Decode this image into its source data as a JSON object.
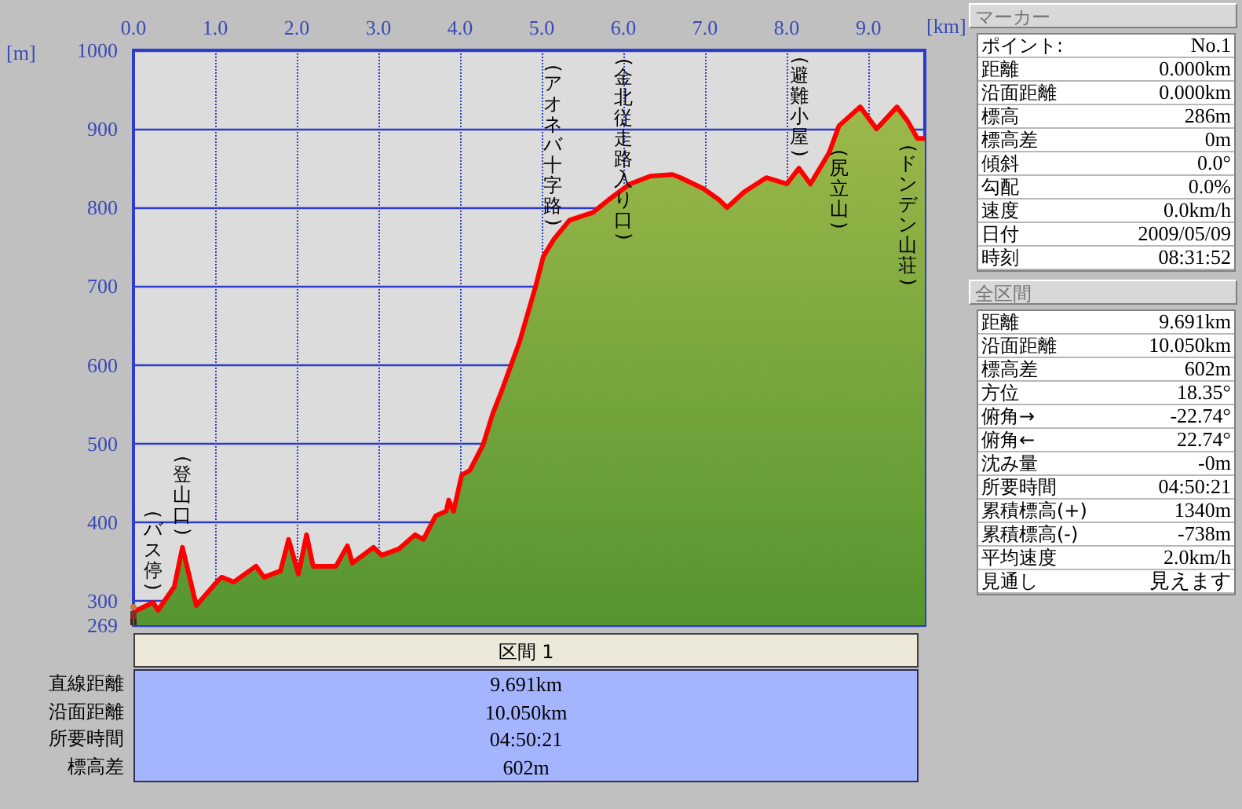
{
  "chart_data": {
    "type": "area",
    "xlabel": "[km]",
    "ylabel": "[m]",
    "marker": "none",
    "grid": true,
    "x": [
      0,
      0.24,
      0.3,
      0.5,
      0.6,
      0.77,
      1.02,
      1.08,
      1.23,
      1.5,
      1.6,
      1.8,
      1.9,
      2.02,
      2.12,
      2.2,
      2.48,
      2.62,
      2.68,
      2.94,
      3.04,
      3.25,
      3.45,
      3.55,
      3.7,
      3.83,
      3.86,
      3.92,
      4.02,
      4.12,
      4.28,
      4.4,
      4.52,
      4.73,
      4.92,
      5.02,
      5.15,
      5.34,
      5.63,
      5.82,
      6.08,
      6.33,
      6.6,
      6.7,
      6.98,
      7.17,
      7.27,
      7.48,
      7.75,
      8.0,
      8.15,
      8.29,
      8.52,
      8.64,
      8.9,
      9.1,
      9.35,
      9.48,
      9.6,
      9.691
    ],
    "series": [
      {
        "color": "#ff0000",
        "values": [
          286,
          298,
          288,
          318,
          368,
          294,
          324,
          330,
          324,
          344,
          330,
          338,
          378,
          334,
          384,
          344,
          344,
          370,
          348,
          368,
          358,
          366,
          384,
          378,
          408,
          414,
          428,
          414,
          460,
          466,
          498,
          538,
          570,
          630,
          698,
          738,
          760,
          784,
          794,
          810,
          830,
          840,
          842,
          838,
          824,
          810,
          800,
          820,
          838,
          830,
          850,
          830,
          870,
          904,
          928,
          900,
          928,
          910,
          888,
          888
        ]
      }
    ],
    "xlim": [
      0,
      9.691
    ],
    "xticks": [
      {
        "value": 0,
        "label": "0.0"
      },
      {
        "value": 1,
        "label": "1.0"
      },
      {
        "value": 2,
        "label": "2.0"
      },
      {
        "value": 3,
        "label": "3.0"
      },
      {
        "value": 4,
        "label": "4.0"
      },
      {
        "value": 5,
        "label": "5.0"
      },
      {
        "value": 6,
        "label": "6.0"
      },
      {
        "value": 7,
        "label": "7.0"
      },
      {
        "value": 8,
        "label": "8.0"
      },
      {
        "value": 9,
        "label": "9.0"
      }
    ],
    "ylim": [
      269,
      1000
    ],
    "yticks": [
      269,
      300,
      400,
      500,
      600,
      700,
      800,
      900,
      1000
    ],
    "annotations": [
      {
        "text": "(バス停)",
        "x": 0.24,
        "y": 298
      },
      {
        "text": "(登山口)",
        "x": 0.6,
        "y": 368
      },
      {
        "text": "(避難小屋)",
        "x": 8.15,
        "y": 850
      },
      {
        "text": "(尻立山)",
        "x": 8.64,
        "y": 904
      },
      {
        "text": "(ドンデン山荘)",
        "x": 9.48,
        "y": 910
      },
      "(アオネバ十字路)",
      "(金北従走路入り口)",
      "マーカー",
      "ポイント:",
      "No.1",
      "距離",
      "0.000km",
      "沿面距離",
      "0.000km",
      "標高",
      "286m",
      "標高差",
      "0m",
      "傾斜",
      "0.0°",
      "勾配",
      "0.0%",
      "速度",
      "0.0km/h",
      "日付",
      "2009/05/09",
      "時刻",
      "08:31:52",
      "全区間",
      "距離",
      "9.691km",
      "沿面距離",
      "10.050km",
      "標高差",
      "602m",
      "方位",
      "18.35°",
      "俯角→",
      "-22.74°",
      "俯角←",
      "22.74°",
      "沈み量",
      "-0m",
      "所要時間",
      "04:50:21",
      "累積標高(+)",
      "1340m",
      "累積標高(-)",
      "-738m",
      "平均速度",
      "2.0km/h",
      "見通し",
      "見えます",
      "区間 1",
      "直線距離",
      "9.691km",
      "沿面距離",
      "10.050km",
      "所要時間",
      "04:50:21",
      "標高差",
      "602m"
    ]
  }
}
